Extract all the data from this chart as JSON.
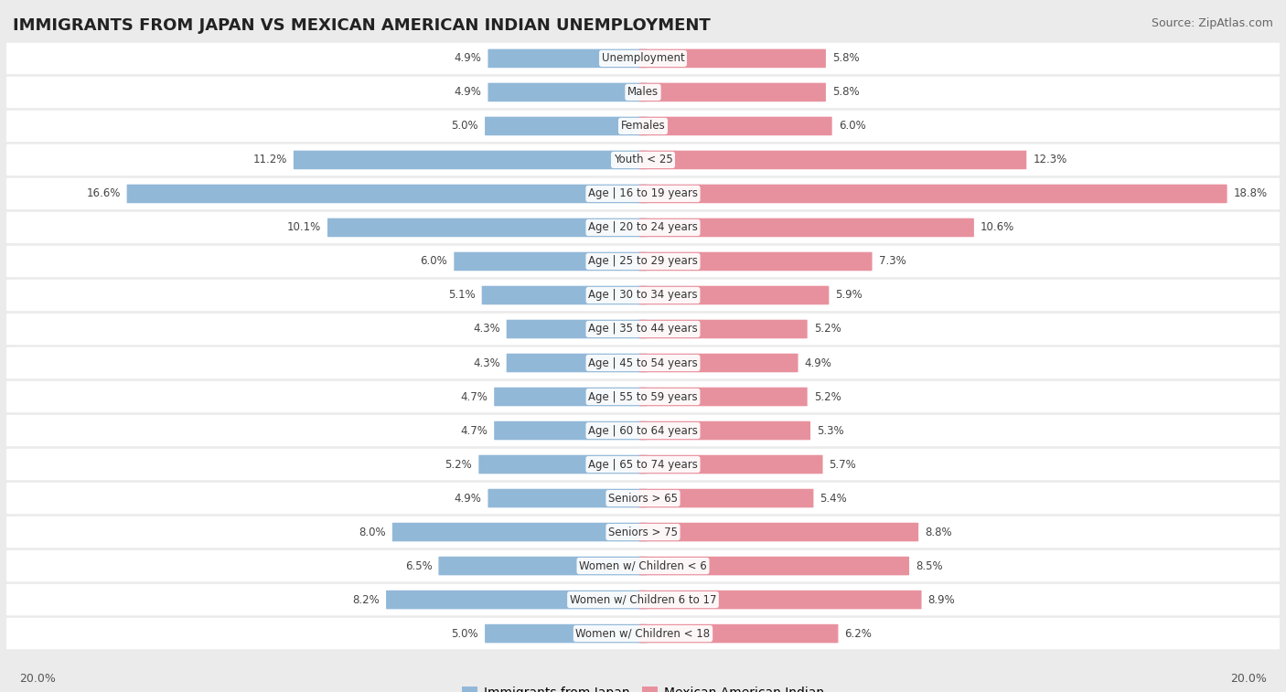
{
  "title": "IMMIGRANTS FROM JAPAN VS MEXICAN AMERICAN INDIAN UNEMPLOYMENT",
  "source": "Source: ZipAtlas.com",
  "categories": [
    "Unemployment",
    "Males",
    "Females",
    "Youth < 25",
    "Age | 16 to 19 years",
    "Age | 20 to 24 years",
    "Age | 25 to 29 years",
    "Age | 30 to 34 years",
    "Age | 35 to 44 years",
    "Age | 45 to 54 years",
    "Age | 55 to 59 years",
    "Age | 60 to 64 years",
    "Age | 65 to 74 years",
    "Seniors > 65",
    "Seniors > 75",
    "Women w/ Children < 6",
    "Women w/ Children 6 to 17",
    "Women w/ Children < 18"
  ],
  "left_values": [
    4.9,
    4.9,
    5.0,
    11.2,
    16.6,
    10.1,
    6.0,
    5.1,
    4.3,
    4.3,
    4.7,
    4.7,
    5.2,
    4.9,
    8.0,
    6.5,
    8.2,
    5.0
  ],
  "right_values": [
    5.8,
    5.8,
    6.0,
    12.3,
    18.8,
    10.6,
    7.3,
    5.9,
    5.2,
    4.9,
    5.2,
    5.3,
    5.7,
    5.4,
    8.8,
    8.5,
    8.9,
    6.2
  ],
  "left_color": "#92b8d8",
  "right_color": "#e8919e",
  "bg_color": "#ebebeb",
  "row_bg_color": "#ffffff",
  "row_alt_color": "#ebebeb",
  "max_value": 20.0,
  "legend_left": "Immigrants from Japan",
  "legend_right": "Mexican American Indian",
  "axis_label_left": "20.0%",
  "axis_label_right": "20.0%",
  "title_fontsize": 13,
  "source_fontsize": 9,
  "label_fontsize": 8.5,
  "cat_fontsize": 8.5
}
